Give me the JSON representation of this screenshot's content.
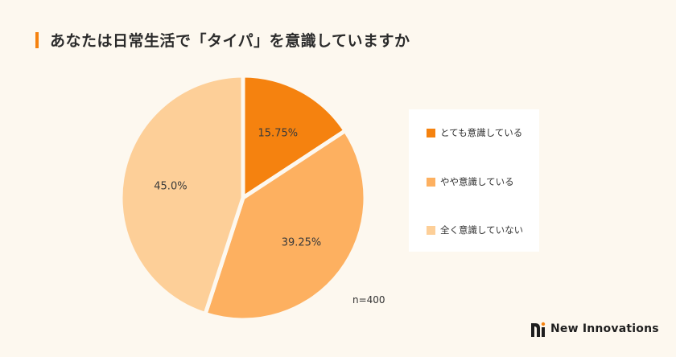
{
  "title": "あなたは日常生活で「タイパ」を意識していますか",
  "note": "n=400",
  "brand": "New Innovations",
  "colors": {
    "background": "#fdf8ef",
    "accent": "#f5820f"
  },
  "chart_data": {
    "type": "pie",
    "title": "あなたは日常生活で「タイパ」を意識していますか",
    "legend_position": "right",
    "slices": [
      {
        "label": "とても意識している",
        "value": 15.75,
        "display": "15.75%",
        "color": "#f5820f"
      },
      {
        "label": "やや意識している",
        "value": 39.25,
        "display": "39.25%",
        "color": "#fdb060"
      },
      {
        "label": "全く意識していない",
        "value": 45.0,
        "display": "45.0%",
        "color": "#fdcf98"
      }
    ]
  }
}
